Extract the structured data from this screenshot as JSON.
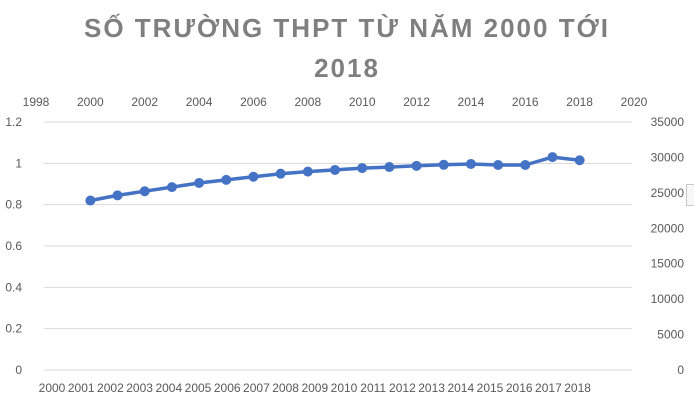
{
  "chart_data": {
    "type": "line",
    "title": "SỐ TRƯỜNG THPT TỪ NĂM 2000 TỚI 2018",
    "title_lines": [
      "SỐ TRƯỜNG THPT TỪ NĂM 2000 TỚI",
      "2018"
    ],
    "x": [
      2000,
      2001,
      2002,
      2003,
      2004,
      2005,
      2006,
      2007,
      2008,
      2009,
      2010,
      2011,
      2012,
      2013,
      2014,
      2015,
      2016,
      2017,
      2018
    ],
    "series": [
      {
        "values": [
          0.82,
          0.845,
          0.865,
          0.885,
          0.905,
          0.92,
          0.935,
          0.95,
          0.96,
          0.968,
          0.977,
          0.982,
          0.988,
          0.993,
          0.997,
          0.992,
          0.992,
          1.03,
          1.015
        ]
      }
    ],
    "x_top_ticks": [
      "1998",
      "2000",
      "2002",
      "2004",
      "2006",
      "2008",
      "2010",
      "2012",
      "2014",
      "2016",
      "2018",
      "2020"
    ],
    "x_top_range": [
      1998,
      2020
    ],
    "x_bottom_ticks": [
      "2000",
      "2001",
      "2002",
      "2003",
      "2004",
      "2005",
      "2006",
      "2007",
      "2008",
      "2009",
      "2010",
      "2011",
      "2012",
      "2013",
      "2014",
      "2015",
      "2016",
      "2017",
      "2018"
    ],
    "y_left_ticks": [
      "0",
      "0.2",
      "0.4",
      "0.6",
      "0.8",
      "1",
      "1.2"
    ],
    "ylim": [
      0,
      1.2
    ],
    "y_right_ticks": [
      "0",
      "5000",
      "10000",
      "15000",
      "20000",
      "25000",
      "30000",
      "35000"
    ],
    "y_right_range": [
      0,
      35000
    ],
    "grid": true,
    "line_color": "#4472c4",
    "title_color": "#7f7f7f"
  }
}
